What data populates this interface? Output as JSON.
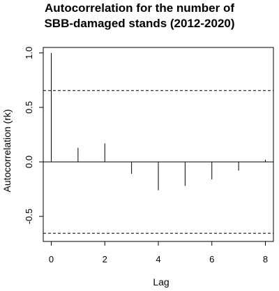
{
  "chart_data": {
    "type": "bar",
    "title_lines": [
      "Autocorrelation for the number of",
      "SBB-damaged stands (2012-2020)"
    ],
    "xlabel": "Lag",
    "ylabel": "Autocorrelation (rk)",
    "xlim": [
      -0.3,
      8.3
    ],
    "ylim": [
      -0.73,
      1.05
    ],
    "x_ticks": [
      0,
      2,
      4,
      6,
      8
    ],
    "y_ticks": [
      -0.5,
      0.0,
      0.5,
      1.0
    ],
    "y_tick_labels": [
      "-0.5",
      "0.0",
      "0.5",
      "1.0"
    ],
    "lags": [
      0,
      1,
      2,
      3,
      4,
      5,
      6,
      7,
      8
    ],
    "values": [
      1.0,
      0.13,
      0.17,
      -0.11,
      -0.26,
      -0.22,
      -0.16,
      -0.08,
      0.02
    ],
    "confidence_bounds": [
      0.655,
      -0.655
    ],
    "grid": false
  }
}
